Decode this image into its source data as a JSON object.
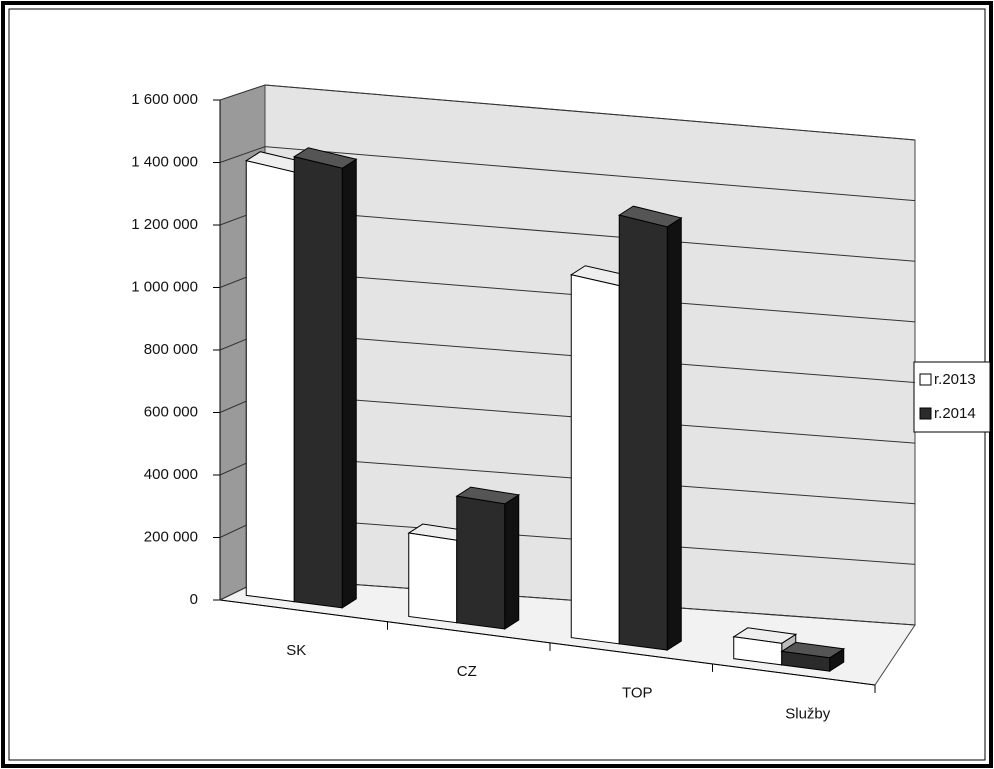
{
  "chart_data": {
    "type": "bar3d",
    "categories": [
      "SK",
      "CZ",
      "TOP",
      "Služby"
    ],
    "series": [
      {
        "name": "r.2013",
        "color": "#ffffff",
        "values": [
          1400000,
          280000,
          1270000,
          80000
        ]
      },
      {
        "name": "r.2014",
        "color": "#2b2b2b",
        "values": [
          1450000,
          430000,
          1520000,
          50000
        ]
      }
    ],
    "ylim": [
      0,
      1600000
    ],
    "yticks": [
      0,
      {
        "value": 200000,
        "label": "200 000"
      },
      {
        "value": 400000,
        "label": "400 000"
      },
      {
        "value": 600000,
        "label": "600 000"
      },
      {
        "value": 800000,
        "label": "800 000"
      },
      {
        "value": 1000000,
        "label": "1 000 000"
      },
      {
        "value": 1200000,
        "label": "1 200 000"
      },
      {
        "value": 1400000,
        "label": "1 400 000"
      },
      {
        "value": 1600000,
        "label": "1 600 000"
      }
    ],
    "grid": true,
    "legend": "right"
  }
}
